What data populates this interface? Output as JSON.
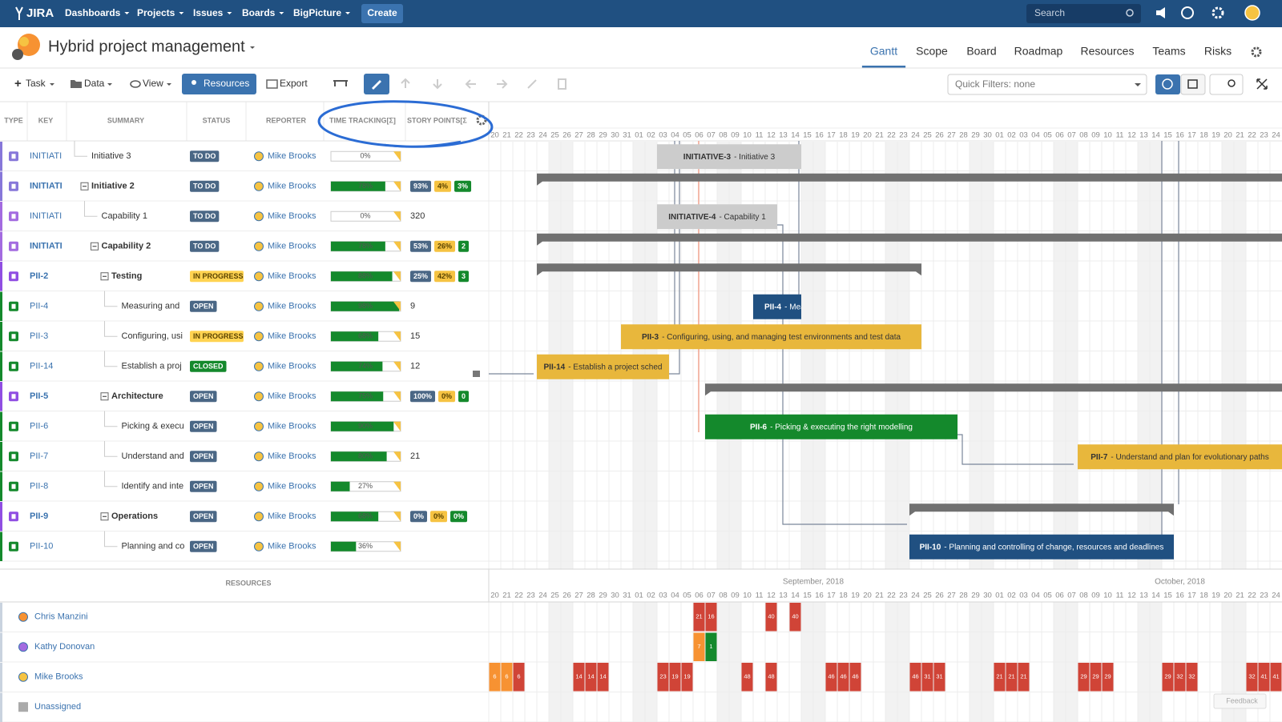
{
  "nav": {
    "logo": "JIRA",
    "menus": [
      "Dashboards",
      "Projects",
      "Issues",
      "Boards",
      "BigPicture"
    ],
    "create": "Create",
    "search": "Search"
  },
  "project": {
    "title": "Hybrid project management",
    "tabs": [
      "Gantt",
      "Scope",
      "Board",
      "Roadmap",
      "Resources",
      "Teams",
      "Risks"
    ],
    "active_tab": 0
  },
  "toolbar": {
    "task": "Task",
    "data": "Data",
    "view": "View",
    "resources": "Resources",
    "export": "Export",
    "quick_filters": "Quick Filters: none"
  },
  "table": {
    "columns": [
      "TYPE",
      "KEY",
      "SUMMARY",
      "STATUS",
      "REPORTER",
      "TIME TRACKING[Σ]",
      "STORY POINTS[Σ"
    ],
    "point_chip_colors": [
      [
        "#4a6785",
        "#ffffff"
      ],
      [
        "#f6c342",
        "#594300"
      ],
      [
        "#14892c",
        "#ffffff"
      ]
    ],
    "rows": [
      {
        "key": "INITIATI",
        "summary": "Initiative 3",
        "level": 0,
        "expanded": false,
        "type_color": "#8777d9",
        "status": "TO DO",
        "status_colors": [
          "#4a6785",
          "#ffffff"
        ],
        "reporter": "Mike Brooks",
        "progress": 0,
        "progress_label": "0%",
        "bar_key": "INITIATIVE-3",
        "bar_text": "- Initiative 3",
        "bar_colors": [
          "#cccccc",
          "#333333"
        ],
        "start": "2018-09-03",
        "end": "2018-09-14"
      },
      {
        "key": "INITIATI",
        "summary": "Initiative 2",
        "level": 0,
        "expanded": true,
        "type_color": "#8777d9",
        "status": "TO DO",
        "status_colors": [
          "#4a6785",
          "#ffffff"
        ],
        "reporter": "Mike Brooks",
        "progress": 78,
        "progress_label": "78%",
        "points": [
          "93%",
          "4%",
          "3%"
        ],
        "start": "2018-08-24",
        "end": "2018-10-31"
      },
      {
        "key": "INITIATI",
        "summary": "Capability 1",
        "level": 1,
        "expanded": false,
        "type_color": "#a36be0",
        "status": "TO DO",
        "status_colors": [
          "#4a6785",
          "#ffffff"
        ],
        "reporter": "Mike Brooks",
        "progress": 0,
        "progress_label": "0%",
        "points": 320,
        "bar_key": "INITIATIVE-4",
        "bar_text": "- Capability 1",
        "bar_colors": [
          "#cccccc",
          "#333333"
        ],
        "start": "2018-09-03",
        "end": "2018-09-12"
      },
      {
        "key": "INITIATI",
        "summary": "Capability 2",
        "level": 1,
        "expanded": true,
        "type_color": "#a36be0",
        "status": "TO DO",
        "status_colors": [
          "#4a6785",
          "#ffffff"
        ],
        "reporter": "Mike Brooks",
        "progress": 78,
        "progress_label": "78%",
        "points": [
          "53%",
          "26%",
          "2"
        ],
        "start": "2018-08-24",
        "end": "2018-10-31"
      },
      {
        "key": "PII-2",
        "summary": "Testing",
        "level": 2,
        "expanded": true,
        "type_color": "#904ee2",
        "status": "IN PROGRESS",
        "status_colors": [
          "#ffd351",
          "#594300"
        ],
        "reporter": "Mike Brooks",
        "progress": 88,
        "progress_label": "88%",
        "points": [
          "25%",
          "42%",
          "3"
        ],
        "start": "2018-08-24",
        "end": "2018-09-24"
      },
      {
        "key": "PII-4",
        "summary": "Measuring and",
        "level": 3,
        "expanded": false,
        "type_color": "#14892c",
        "status": "OPEN",
        "status_colors": [
          "#4a6785",
          "#ffffff"
        ],
        "reporter": "Mike Brooks",
        "progress": 98,
        "progress_label": "98%",
        "points": 9,
        "bar_key": "PII-4",
        "bar_text": "- Measu",
        "bar_colors": [
          "#205081",
          "#ffffff"
        ],
        "start": "2018-09-11",
        "end": "2018-09-14"
      },
      {
        "key": "PII-3",
        "summary": "Configuring, usi",
        "level": 3,
        "expanded": false,
        "type_color": "#14892c",
        "status": "IN PROGRESS",
        "status_colors": [
          "#ffd351",
          "#594300"
        ],
        "reporter": "Mike Brooks",
        "progress": 68,
        "progress_label": "68%",
        "points": 15,
        "bar_key": "PII-3",
        "bar_text": "- Configuring, using, and managing test environments and test data",
        "bar_colors": [
          "#e8b73c",
          "#333333"
        ],
        "start": "2018-08-31",
        "end": "2018-09-24"
      },
      {
        "key": "PII-14",
        "summary": "Establish a proj",
        "level": 3,
        "expanded": false,
        "type_color": "#14892c",
        "status": "CLOSED",
        "status_colors": [
          "#14892c",
          "#ffffff"
        ],
        "reporter": "Mike Brooks",
        "progress": 74,
        "progress_label": "74%",
        "points": 12,
        "bar_key": "PII-14",
        "bar_text": "- Establish a project sched",
        "bar_colors": [
          "#e8b73c",
          "#333333"
        ],
        "start": "2018-08-24",
        "end": "2018-09-03"
      },
      {
        "key": "PII-5",
        "summary": "Architecture",
        "level": 2,
        "expanded": true,
        "type_color": "#904ee2",
        "status": "OPEN",
        "status_colors": [
          "#4a6785",
          "#ffffff"
        ],
        "reporter": "Mike Brooks",
        "progress": 75,
        "progress_label": "75%",
        "points": [
          "100%",
          "0%",
          "0"
        ],
        "start": "2018-09-07",
        "end": "2018-10-31"
      },
      {
        "key": "PII-6",
        "summary": "Picking & execu",
        "level": 3,
        "expanded": false,
        "type_color": "#14892c",
        "status": "OPEN",
        "status_colors": [
          "#4a6785",
          "#ffffff"
        ],
        "reporter": "Mike Brooks",
        "progress": 90,
        "progress_label": "90%",
        "bar_key": "PII-6",
        "bar_text": "- Picking & executing the right modelling",
        "bar_colors": [
          "#14892c",
          "#ffffff"
        ],
        "start": "2018-09-07",
        "end": "2018-09-27"
      },
      {
        "key": "PII-7",
        "summary": "Understand and",
        "level": 3,
        "expanded": false,
        "type_color": "#14892c",
        "status": "OPEN",
        "status_colors": [
          "#4a6785",
          "#ffffff"
        ],
        "reporter": "Mike Brooks",
        "progress": 80,
        "progress_label": "80%",
        "points": 21,
        "bar_key": "PII-7",
        "bar_text": "- Understand and plan for evolutionary paths",
        "bar_colors": [
          "#e8b73c",
          "#333333"
        ],
        "start": "2018-10-08",
        "end": "2018-10-31"
      },
      {
        "key": "PII-8",
        "summary": "Identify and inte",
        "level": 3,
        "expanded": false,
        "type_color": "#14892c",
        "status": "OPEN",
        "status_colors": [
          "#4a6785",
          "#ffffff"
        ],
        "reporter": "Mike Brooks",
        "progress": 27,
        "progress_label": "27%"
      },
      {
        "key": "PII-9",
        "summary": "Operations",
        "level": 2,
        "expanded": true,
        "type_color": "#904ee2",
        "status": "OPEN",
        "status_colors": [
          "#4a6785",
          "#ffffff"
        ],
        "reporter": "Mike Brooks",
        "progress": 68,
        "progress_label": "68%",
        "points": [
          "0%",
          "0%",
          "0%"
        ],
        "start": "2018-09-24",
        "end": "2018-10-15"
      },
      {
        "key": "PII-10",
        "summary": "Planning and co",
        "level": 3,
        "expanded": false,
        "type_color": "#14892c",
        "status": "OPEN",
        "status_colors": [
          "#4a6785",
          "#ffffff"
        ],
        "reporter": "Mike Brooks",
        "progress": 36,
        "progress_label": "36%",
        "bar_key": "PII-10",
        "bar_text": "- Planning and controlling of change, resources and deadlines",
        "bar_colors": [
          "#205081",
          "#ffffff"
        ],
        "start": "2018-09-24",
        "end": "2018-10-15"
      }
    ]
  },
  "timeline": {
    "first_date": "2018-08-20",
    "months": [
      {
        "label": "September, 2018",
        "date": "2018-09-01"
      },
      {
        "label": "October, 2018",
        "date": "2018-10-01"
      }
    ],
    "days": [
      "20",
      "21",
      "22",
      "23",
      "24",
      "25",
      "26",
      "27",
      "28",
      "29",
      "30",
      "31",
      "01",
      "02",
      "03",
      "04",
      "05",
      "06",
      "07",
      "08",
      "09",
      "10",
      "11",
      "12",
      "13",
      "14",
      "15",
      "16",
      "17",
      "18",
      "19",
      "20",
      "21",
      "22",
      "23",
      "24",
      "25",
      "26",
      "27",
      "28",
      "29",
      "30",
      "01",
      "02",
      "03",
      "04",
      "05",
      "06",
      "07",
      "08",
      "09",
      "10",
      "11",
      "12",
      "13",
      "14",
      "15",
      "16",
      "17",
      "18",
      "19",
      "20",
      "21",
      "22",
      "23",
      "24"
    ]
  },
  "resources": {
    "title": "RESOURCES",
    "people": [
      {
        "name": "Chris Manzini",
        "cells": [
          {
            "date": "2018-09-06",
            "value": 21,
            "color": "#d04437"
          },
          {
            "date": "2018-09-07",
            "value": 16,
            "color": "#d04437"
          },
          {
            "date": "2018-09-12",
            "value": 40,
            "color": "#d04437"
          },
          {
            "date": "2018-09-14",
            "value": 40,
            "color": "#d04437"
          }
        ]
      },
      {
        "name": "Kathy Donovan",
        "cells": [
          {
            "date": "2018-09-06",
            "value": 7,
            "color": "#f79232"
          },
          {
            "date": "2018-09-07",
            "value": 1,
            "color": "#14892c"
          }
        ]
      },
      {
        "name": "Mike Brooks",
        "cells": [
          {
            "date": "2018-08-20",
            "value": 6,
            "color": "#f79232"
          },
          {
            "date": "2018-08-21",
            "value": 6,
            "color": "#f79232"
          },
          {
            "date": "2018-08-22",
            "value": 6,
            "color": "#d04437"
          },
          {
            "date": "2018-08-27",
            "value": 14,
            "color": "#d04437"
          },
          {
            "date": "2018-08-28",
            "value": 14,
            "color": "#d04437"
          },
          {
            "date": "2018-08-29",
            "value": 14,
            "color": "#d04437"
          },
          {
            "date": "2018-09-03",
            "value": 23,
            "color": "#d04437"
          },
          {
            "date": "2018-09-04",
            "value": 19,
            "color": "#d04437"
          },
          {
            "date": "2018-09-05",
            "value": 19,
            "color": "#d04437"
          },
          {
            "date": "2018-09-10",
            "value": 48,
            "color": "#d04437"
          },
          {
            "date": "2018-09-12",
            "value": 48,
            "color": "#d04437"
          },
          {
            "date": "2018-09-17",
            "value": 46,
            "color": "#d04437"
          },
          {
            "date": "2018-09-18",
            "value": 46,
            "color": "#d04437"
          },
          {
            "date": "2018-09-19",
            "value": 46,
            "color": "#d04437"
          },
          {
            "date": "2018-09-24",
            "value": 46,
            "color": "#d04437"
          },
          {
            "date": "2018-09-25",
            "value": 31,
            "color": "#d04437"
          },
          {
            "date": "2018-09-26",
            "value": 31,
            "color": "#d04437"
          },
          {
            "date": "2018-10-01",
            "value": 21,
            "color": "#d04437"
          },
          {
            "date": "2018-10-02",
            "value": 21,
            "color": "#d04437"
          },
          {
            "date": "2018-10-03",
            "value": 21,
            "color": "#d04437"
          },
          {
            "date": "2018-10-08",
            "value": 29,
            "color": "#d04437"
          },
          {
            "date": "2018-10-09",
            "value": 29,
            "color": "#d04437"
          },
          {
            "date": "2018-10-10",
            "value": 29,
            "color": "#d04437"
          },
          {
            "date": "2018-10-15",
            "value": 29,
            "color": "#d04437"
          },
          {
            "date": "2018-10-16",
            "value": 32,
            "color": "#d04437"
          },
          {
            "date": "2018-10-17",
            "value": 32,
            "color": "#d04437"
          },
          {
            "date": "2018-10-22",
            "value": 32,
            "color": "#d04437"
          },
          {
            "date": "2018-10-23",
            "value": 41,
            "color": "#d04437"
          },
          {
            "date": "2018-10-24",
            "value": 41,
            "color": "#d04437"
          }
        ]
      },
      {
        "name": "Unassigned",
        "cells": []
      }
    ]
  },
  "feedback": "Feedback"
}
